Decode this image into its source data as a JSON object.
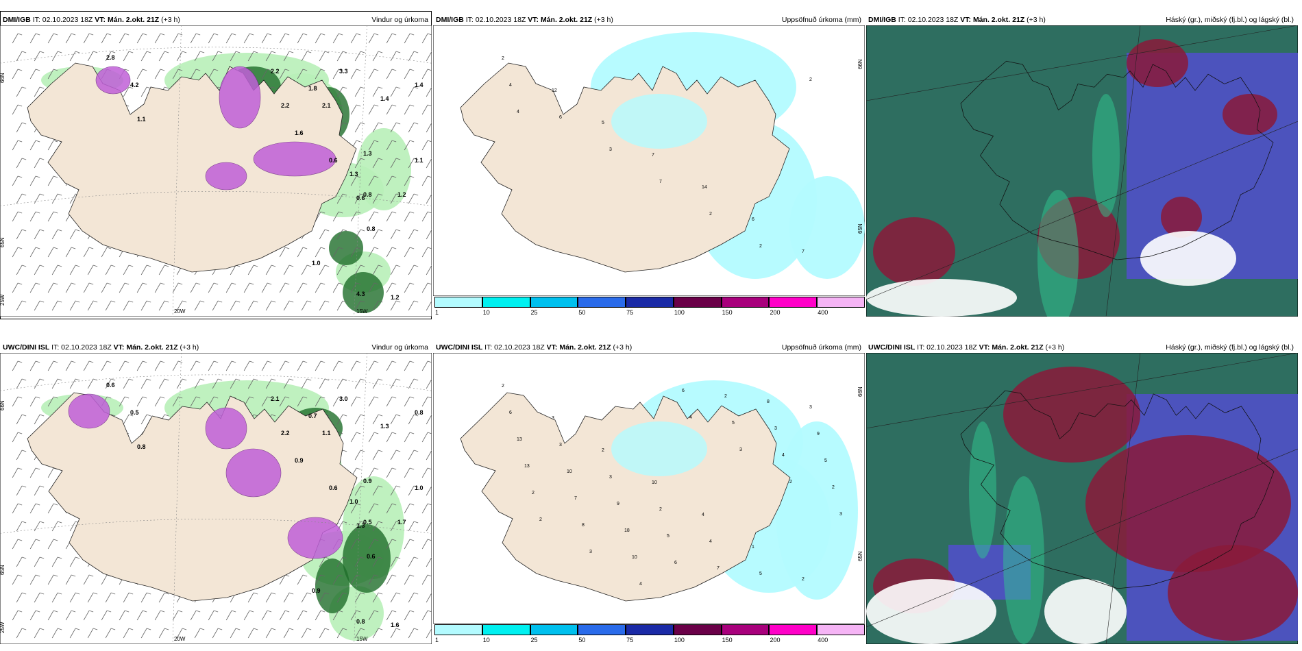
{
  "panels": {
    "tl": {
      "model": "DMI/IGB",
      "it": "IT: 02.10.2023 18Z",
      "vt_label": "VT:",
      "vt": "Mán. 2.okt. 21Z",
      "lead": "(+3 h)",
      "right": "Vindur og úrkoma"
    },
    "tm": {
      "model": "DMI/IGB",
      "it": "IT: 02.10.2023 18Z",
      "vt_label": "VT:",
      "vt": "Mán. 2.okt. 21Z",
      "lead": "(+3 h)",
      "right": "Uppsöfnuð úrkoma (mm)"
    },
    "tr": {
      "model": "DMI/IGB",
      "it": "IT: 02.10.2023 18Z",
      "vt_label": "VT:",
      "vt": "Mán. 2.okt. 21Z",
      "lead": "(+3 h)",
      "right": "Háský (gr.), miðský (fj.bl.) og lágský (bl.)"
    },
    "bl": {
      "model": "UWC/DINI ISL",
      "it": "IT: 02.10.2023 18Z",
      "vt_label": "VT:",
      "vt": "Mán. 2.okt. 21Z",
      "lead": "(+3 h)",
      "right": "Vindur og úrkoma"
    },
    "bm": {
      "model": "UWC/DINI ISL",
      "it": "IT: 02.10.2023 18Z",
      "vt_label": "VT:",
      "vt": "Mán. 2.okt. 21Z",
      "lead": "(+3 h)",
      "right": "Uppsöfnuð úrkoma (mm)"
    },
    "br": {
      "model": "UWC/DINI ISL",
      "it": "IT: 02.10.2023 18Z",
      "vt_label": "VT:",
      "vt": "Mán. 2.okt. 21Z",
      "lead": "(+3 h)",
      "right": "Háský (gr.), miðský (fj.bl.) og lágský (bl.)"
    }
  },
  "grid_labels": {
    "lat66": "66N",
    "lat65": "65N",
    "lon20": "20W",
    "lon15": "15W",
    "lon25": "25W"
  },
  "colorbar": {
    "ticks": [
      "1",
      "10",
      "25",
      "50",
      "75",
      "100",
      "150",
      "200",
      "400"
    ],
    "colors": [
      "#b3fbff",
      "#00f0f0",
      "#00c0ee",
      "#2a6bea",
      "#1a2aa6",
      "#6a0048",
      "#a8007c",
      "#ff00c8",
      "#f5b4f5"
    ]
  },
  "precip_labels_top": [
    "2",
    "12",
    "5",
    "7",
    "14",
    "6",
    "7",
    "4",
    "6",
    "3",
    "7",
    "2",
    "2",
    "2",
    "4"
  ],
  "precip_labels_bottom": [
    "2",
    "3",
    "2",
    "10",
    "4",
    "1",
    "2",
    "6",
    "3",
    "3",
    "2",
    "4",
    "5",
    "3",
    "13",
    "10",
    "9",
    "5",
    "7",
    "8",
    "9",
    "13",
    "7",
    "18",
    "6",
    "2",
    "3",
    "5",
    "2",
    "8",
    "10",
    "6",
    "5",
    "4",
    "2",
    "2",
    "3",
    "4",
    "4",
    "3",
    "2",
    "3"
  ],
  "wind_values_top": [
    "2.8",
    "4.2",
    "1.1",
    "2.2",
    "3.3",
    "1.6",
    "1.3",
    "0.6",
    "1.4",
    "2.1",
    "1.8",
    "1.3",
    "0.6",
    "0.8",
    "1.2",
    "0.8",
    "1.0",
    "1.1",
    "1.4",
    "2.2",
    "1.2",
    "4.3"
  ],
  "wind_values_bottom": [
    "0.6",
    "0.5",
    "0.8",
    "2.1",
    "3.0",
    "0.9",
    "1.0",
    "0.6",
    "0.8",
    "1.1",
    "0.7",
    "0.9",
    "1.3",
    "0.5",
    "1.7",
    "0.6",
    "0.9",
    "1.0",
    "1.3",
    "2.2",
    "1.6",
    "0.8"
  ],
  "colors": {
    "land": "#f3e6d6",
    "green_light": "#b8efb8",
    "green_mid": "#6fcf6f",
    "green_dark": "#1f6e2a",
    "purple": "#c060d8",
    "cyan": "#b3fbff",
    "cloud_dark": "#2f6f5f",
    "cloud_red": "#8a1a3a",
    "cloud_blue": "#5050c8"
  }
}
